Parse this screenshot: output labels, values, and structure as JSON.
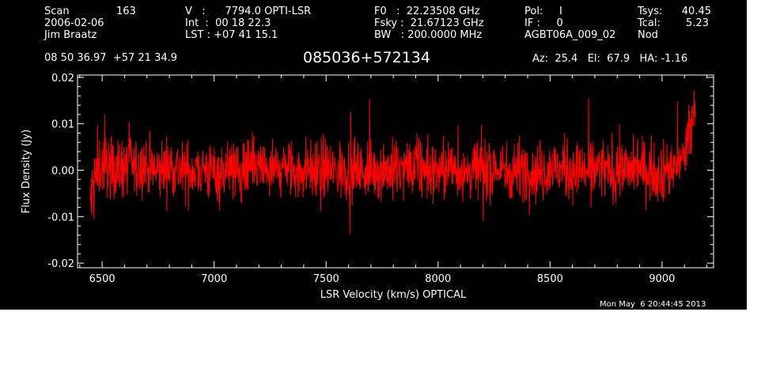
{
  "header": {
    "col1": [
      "Scan",
      "2006-02-06",
      "Jim Braatz"
    ],
    "scan_number": "163",
    "col2": [
      "V   :      7794.0 OPTI-LSR",
      "Int  :  00 18 22.3",
      "LST : +07 41 15.1"
    ],
    "col3": [
      "F0   :  22.23508 GHz",
      "Fsky :  21.67123 GHz",
      "BW   : 200.0000 MHz"
    ],
    "col4": [
      "Pol:     I",
      "IF :     0",
      "AGBT06A_009_02"
    ],
    "col5": [
      "Tsys:",
      "Tcal:",
      "Nod"
    ],
    "col5_values": [
      "40.45",
      "5.23"
    ],
    "coords": "08 50 36.97  +57 21 34.9",
    "source": "085036+572134",
    "az_el_ha": "Az:  25.4   El:  67.9   HA: -1.16",
    "timestamp": "Mon May  6 20:44:45 2013"
  },
  "colors": {
    "background": "#000000",
    "axes": "#ffffff",
    "data": "#ff0000"
  },
  "chart_data": {
    "type": "line",
    "xlabel": "LSR Velocity (km/s) OPTICAL",
    "ylabel": "Flux Density (Jy)",
    "xlim": [
      6390,
      9230
    ],
    "ylim": [
      -0.021,
      0.0205
    ],
    "xticks": [
      6500,
      7000,
      7500,
      8000,
      8500,
      9000
    ],
    "xtick_labels": [
      "6500",
      "7000",
      "7500",
      "8000",
      "8500",
      "9000"
    ],
    "yticks": [
      -0.02,
      -0.01,
      0.0,
      0.01,
      0.02
    ],
    "ytick_labels": [
      "-0.02",
      "-0.01",
      "0.00",
      "0.01",
      "0.02"
    ],
    "series": [
      {
        "x": [
          6445,
          6460,
          6475,
          6490,
          6510,
          6530,
          6555,
          6580,
          6620,
          6660,
          6700,
          6740,
          6780,
          6820,
          6860,
          6900,
          6940,
          6980,
          7020,
          7060,
          7100,
          7140,
          7180,
          7220,
          7260,
          7300,
          7340,
          7380,
          7420,
          7460,
          7500,
          7540,
          7580,
          7620,
          7660,
          7700,
          7740,
          7780,
          7820,
          7860,
          7900,
          7940,
          7980,
          8020,
          8060,
          8100,
          8140,
          8180,
          8220,
          8260,
          8300,
          8340,
          8380,
          8420,
          8460,
          8500,
          8540,
          8580,
          8620,
          8660,
          8700,
          8740,
          8780,
          8820,
          8860,
          8900,
          8940,
          8980,
          9020,
          9050,
          9070,
          9085,
          9100,
          9115,
          9130,
          9140,
          9148
        ],
        "y": [
          -0.008,
          -0.004,
          -0.001,
          0.001,
          0.001,
          0.0005,
          0.001,
          0.0,
          0.0015,
          0.0,
          0.001,
          -0.0005,
          0.0005,
          0.001,
          -0.0005,
          0.0,
          0.0005,
          -0.0005,
          0.0,
          0.0005,
          -0.0005,
          0.0,
          0.0005,
          0.0,
          -0.0005,
          0.0005,
          0.0,
          -0.0005,
          0.0005,
          0.0,
          0.0005,
          -0.0005,
          0.0,
          0.0005,
          -0.0005,
          0.0,
          0.0005,
          0.0,
          -0.0005,
          0.0005,
          0.0,
          0.0005,
          -0.0005,
          0.0,
          0.0005,
          0.0,
          -0.0005,
          0.0005,
          0.0,
          0.0005,
          -0.0005,
          0.0,
          0.0005,
          0.0,
          -0.0005,
          0.0005,
          0.0,
          0.0005,
          -0.0005,
          0.0,
          0.0005,
          0.0,
          -0.0005,
          0.0005,
          0.0,
          0.0005,
          0.0,
          -0.0005,
          0.0,
          0.001,
          0.0015,
          0.002,
          0.003,
          0.006,
          0.009,
          0.012,
          0.014
        ]
      }
    ]
  }
}
